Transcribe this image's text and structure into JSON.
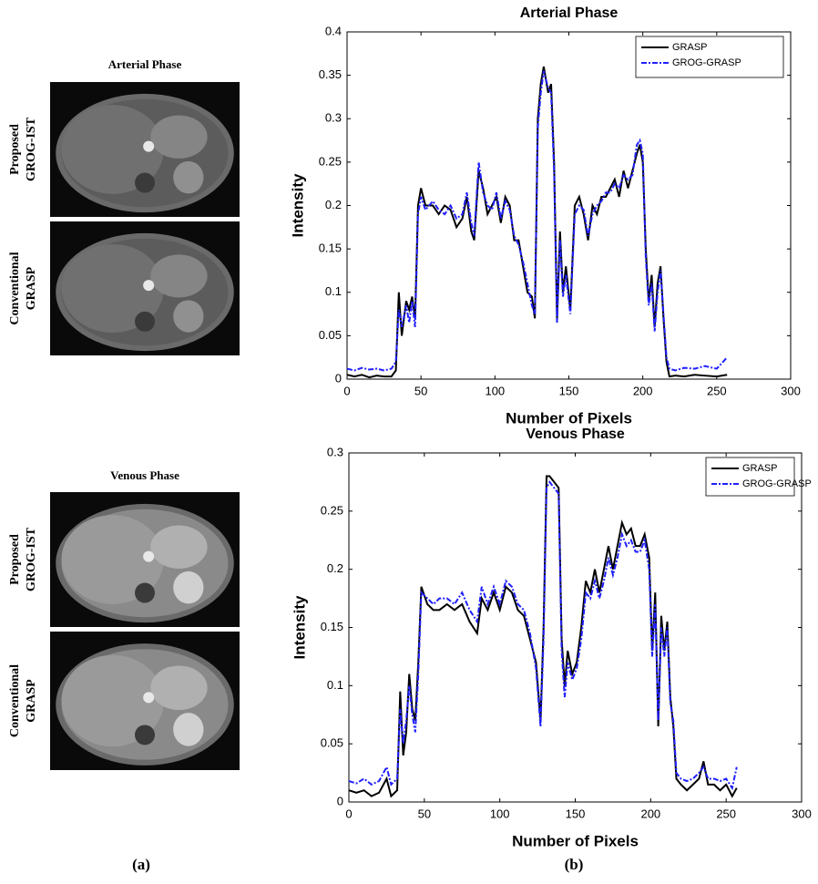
{
  "images": [
    {
      "title": "Arterial Phase",
      "rows": [
        [
          "Proposed",
          "GROG-IST"
        ],
        [
          "Conventional",
          "GRASP"
        ]
      ]
    },
    {
      "title": "Venous Phase",
      "rows": [
        [
          "Proposed",
          "GROG-IST"
        ],
        [
          "Conventional",
          "GRASP"
        ]
      ]
    }
  ],
  "panel_labels": [
    "(a)",
    "(b)"
  ],
  "chart_data": [
    {
      "type": "line",
      "title": "Arterial Phase",
      "x_label": "Number of Pixels",
      "y_label": "Intensity",
      "xlim": [
        0,
        300
      ],
      "xticks": [
        0,
        50,
        100,
        150,
        200,
        250,
        300
      ],
      "ylim": [
        0,
        0.4
      ],
      "yticks": [
        0,
        0.05,
        0.1,
        0.15,
        0.2,
        0.25,
        0.3,
        0.35,
        0.4
      ],
      "legend": "upper right",
      "grid": false,
      "x": [
        0,
        5,
        10,
        15,
        20,
        25,
        30,
        33,
        35,
        37,
        40,
        42,
        44,
        46,
        48,
        50,
        53,
        58,
        62,
        66,
        70,
        74,
        78,
        81,
        84,
        86,
        89,
        92,
        95,
        98,
        101,
        104,
        107,
        110,
        113,
        116,
        119,
        122,
        125,
        127,
        129,
        131,
        133,
        136,
        138,
        140,
        142,
        144,
        146,
        148,
        151,
        154,
        157,
        160,
        163,
        166,
        169,
        172,
        175,
        178,
        181,
        184,
        187,
        190,
        193,
        196,
        198,
        200,
        202,
        204,
        206,
        208,
        210,
        212,
        214,
        216,
        218,
        222,
        228,
        235,
        242,
        250,
        257
      ],
      "series": [
        {
          "name": "GRASP",
          "color": "#000000",
          "dashed": false,
          "values": [
            0.005,
            0.003,
            0.005,
            0.002,
            0.004,
            0.003,
            0.003,
            0.01,
            0.1,
            0.05,
            0.09,
            0.08,
            0.095,
            0.07,
            0.2,
            0.22,
            0.2,
            0.2,
            0.19,
            0.2,
            0.195,
            0.175,
            0.185,
            0.21,
            0.17,
            0.16,
            0.24,
            0.22,
            0.19,
            0.2,
            0.21,
            0.18,
            0.21,
            0.2,
            0.16,
            0.16,
            0.13,
            0.1,
            0.095,
            0.07,
            0.3,
            0.34,
            0.36,
            0.33,
            0.34,
            0.25,
            0.07,
            0.17,
            0.1,
            0.13,
            0.08,
            0.2,
            0.21,
            0.19,
            0.16,
            0.2,
            0.19,
            0.21,
            0.21,
            0.22,
            0.23,
            0.21,
            0.24,
            0.22,
            0.24,
            0.26,
            0.27,
            0.25,
            0.15,
            0.09,
            0.12,
            0.06,
            0.11,
            0.13,
            0.07,
            0.02,
            0.003,
            0.004,
            0.003,
            0.005,
            0.004,
            0.003,
            0.005
          ]
        },
        {
          "name": "GROG-GRASP",
          "color": "#1f1fff",
          "dashed": true,
          "values": [
            0.012,
            0.01,
            0.013,
            0.011,
            0.012,
            0.01,
            0.012,
            0.02,
            0.08,
            0.06,
            0.085,
            0.065,
            0.09,
            0.06,
            0.19,
            0.21,
            0.195,
            0.205,
            0.195,
            0.19,
            0.2,
            0.185,
            0.19,
            0.215,
            0.18,
            0.165,
            0.25,
            0.215,
            0.2,
            0.195,
            0.215,
            0.185,
            0.205,
            0.195,
            0.165,
            0.155,
            0.135,
            0.11,
            0.085,
            0.075,
            0.29,
            0.33,
            0.355,
            0.335,
            0.33,
            0.24,
            0.065,
            0.16,
            0.095,
            0.12,
            0.075,
            0.19,
            0.2,
            0.195,
            0.165,
            0.19,
            0.2,
            0.205,
            0.215,
            0.215,
            0.225,
            0.22,
            0.235,
            0.23,
            0.235,
            0.27,
            0.275,
            0.26,
            0.14,
            0.085,
            0.11,
            0.055,
            0.1,
            0.125,
            0.075,
            0.025,
            0.012,
            0.01,
            0.013,
            0.012,
            0.015,
            0.012,
            0.025
          ]
        }
      ]
    },
    {
      "type": "line",
      "title": "Venous Phase",
      "x_label": "Number of Pixels",
      "y_label": "Intensity",
      "xlim": [
        0,
        300
      ],
      "xticks": [
        0,
        50,
        100,
        150,
        200,
        250,
        300
      ],
      "ylim": [
        0,
        0.3
      ],
      "yticks": [
        0,
        0.05,
        0.1,
        0.15,
        0.2,
        0.25,
        0.3
      ],
      "legend": "upper right",
      "grid": false,
      "x": [
        0,
        5,
        10,
        15,
        20,
        25,
        28,
        32,
        34,
        36,
        38,
        40,
        42,
        44,
        46,
        48,
        52,
        56,
        60,
        65,
        70,
        75,
        80,
        85,
        88,
        92,
        96,
        100,
        104,
        108,
        112,
        116,
        120,
        124,
        127,
        129,
        131,
        133,
        136,
        139,
        141,
        143,
        145,
        148,
        151,
        154,
        157,
        160,
        163,
        166,
        169,
        172,
        175,
        178,
        181,
        184,
        187,
        190,
        193,
        196,
        199,
        201,
        203,
        205,
        207,
        209,
        211,
        213,
        215,
        217,
        220,
        224,
        228,
        232,
        235,
        238,
        242,
        246,
        250,
        254,
        257
      ],
      "series": [
        {
          "name": "GRASP",
          "color": "#000000",
          "dashed": false,
          "values": [
            0.01,
            0.008,
            0.01,
            0.005,
            0.008,
            0.02,
            0.005,
            0.01,
            0.095,
            0.04,
            0.06,
            0.11,
            0.08,
            0.07,
            0.12,
            0.185,
            0.17,
            0.165,
            0.165,
            0.17,
            0.165,
            0.17,
            0.155,
            0.145,
            0.175,
            0.165,
            0.18,
            0.165,
            0.185,
            0.18,
            0.165,
            0.16,
            0.14,
            0.12,
            0.07,
            0.15,
            0.28,
            0.28,
            0.275,
            0.27,
            0.14,
            0.1,
            0.13,
            0.11,
            0.12,
            0.15,
            0.19,
            0.18,
            0.2,
            0.18,
            0.2,
            0.22,
            0.2,
            0.22,
            0.24,
            0.23,
            0.235,
            0.22,
            0.22,
            0.23,
            0.21,
            0.13,
            0.18,
            0.065,
            0.16,
            0.13,
            0.155,
            0.09,
            0.065,
            0.02,
            0.015,
            0.01,
            0.015,
            0.02,
            0.035,
            0.015,
            0.015,
            0.01,
            0.015,
            0.005,
            0.012
          ]
        },
        {
          "name": "GROG-GRASP",
          "color": "#1f1fff",
          "dashed": true,
          "values": [
            0.018,
            0.016,
            0.02,
            0.015,
            0.018,
            0.03,
            0.015,
            0.02,
            0.08,
            0.05,
            0.07,
            0.1,
            0.075,
            0.06,
            0.11,
            0.18,
            0.175,
            0.17,
            0.175,
            0.175,
            0.17,
            0.18,
            0.165,
            0.155,
            0.185,
            0.17,
            0.185,
            0.17,
            0.19,
            0.185,
            0.17,
            0.165,
            0.145,
            0.115,
            0.065,
            0.14,
            0.27,
            0.275,
            0.27,
            0.265,
            0.13,
            0.09,
            0.12,
            0.105,
            0.115,
            0.14,
            0.18,
            0.175,
            0.19,
            0.175,
            0.19,
            0.21,
            0.195,
            0.21,
            0.23,
            0.22,
            0.225,
            0.215,
            0.215,
            0.225,
            0.2,
            0.125,
            0.17,
            0.07,
            0.15,
            0.125,
            0.15,
            0.085,
            0.07,
            0.025,
            0.02,
            0.018,
            0.02,
            0.025,
            0.03,
            0.02,
            0.02,
            0.018,
            0.02,
            0.012,
            0.03
          ]
        }
      ]
    }
  ]
}
